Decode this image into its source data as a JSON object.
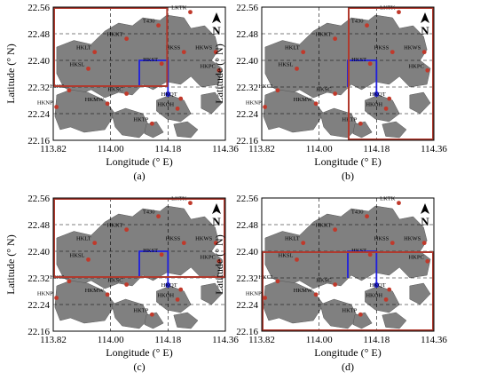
{
  "axes": {
    "xlabel": "Longitude (° E)",
    "ylabel": "Latitude (° N)",
    "x_ticks": [
      "113.82",
      "114.00",
      "114.18",
      "114.36"
    ],
    "y_ticks": [
      "22.56",
      "22.48",
      "22.40",
      "22.32",
      "22.24",
      "22.16"
    ]
  },
  "north_label": "N",
  "stations": [
    {
      "label": "LKTK",
      "lon": 114.25,
      "lat": 22.545
    },
    {
      "label": "T430",
      "lon": 114.15,
      "lat": 22.505
    },
    {
      "label": "HKKT",
      "lon": 114.05,
      "lat": 22.465
    },
    {
      "label": "HKLT",
      "lon": 113.95,
      "lat": 22.425
    },
    {
      "label": "HKSS",
      "lon": 114.23,
      "lat": 22.425
    },
    {
      "label": "HKWS",
      "lon": 114.33,
      "lat": 22.425
    },
    {
      "label": "HKST",
      "lon": 114.16,
      "lat": 22.39
    },
    {
      "label": "HKSL",
      "lon": 113.93,
      "lat": 22.375
    },
    {
      "label": "HKPC",
      "lon": 114.34,
      "lat": 22.37
    },
    {
      "label": "HKMW",
      "lon": 113.99,
      "lat": 22.27
    },
    {
      "label": "HKCL",
      "lon": 113.87,
      "lat": 22.31
    },
    {
      "label": "HKNP",
      "lon": 113.83,
      "lat": 22.26
    },
    {
      "label": "HKQT",
      "lon": 114.22,
      "lat": 22.285
    },
    {
      "label": "HKOH",
      "lon": 114.21,
      "lat": 22.255
    },
    {
      "label": "HKSC",
      "lon": 114.05,
      "lat": 22.3
    },
    {
      "label": "HKTP",
      "lon": 114.13,
      "lat": 22.21
    }
  ],
  "panels": [
    {
      "id": "a",
      "caption": "(a)",
      "window": {
        "lon": [
          113.82,
          114.18
        ],
        "lat": [
          22.32,
          22.56
        ]
      }
    },
    {
      "id": "b",
      "caption": "(b)",
      "window": {
        "lon": [
          114.09,
          114.36
        ],
        "lat": [
          22.16,
          22.56
        ]
      }
    },
    {
      "id": "c",
      "caption": "(c)",
      "window": {
        "lon": [
          113.82,
          114.36
        ],
        "lat": [
          22.32,
          22.56
        ]
      }
    },
    {
      "id": "d",
      "caption": "(d)",
      "window": {
        "lon": [
          113.82,
          114.36
        ],
        "lat": [
          22.16,
          22.4
        ]
      }
    }
  ],
  "colors": {
    "land": "#808080",
    "station": "#c0392b",
    "window": "#b03a2e",
    "target": "#1f1fe0",
    "grid": "#000000"
  }
}
